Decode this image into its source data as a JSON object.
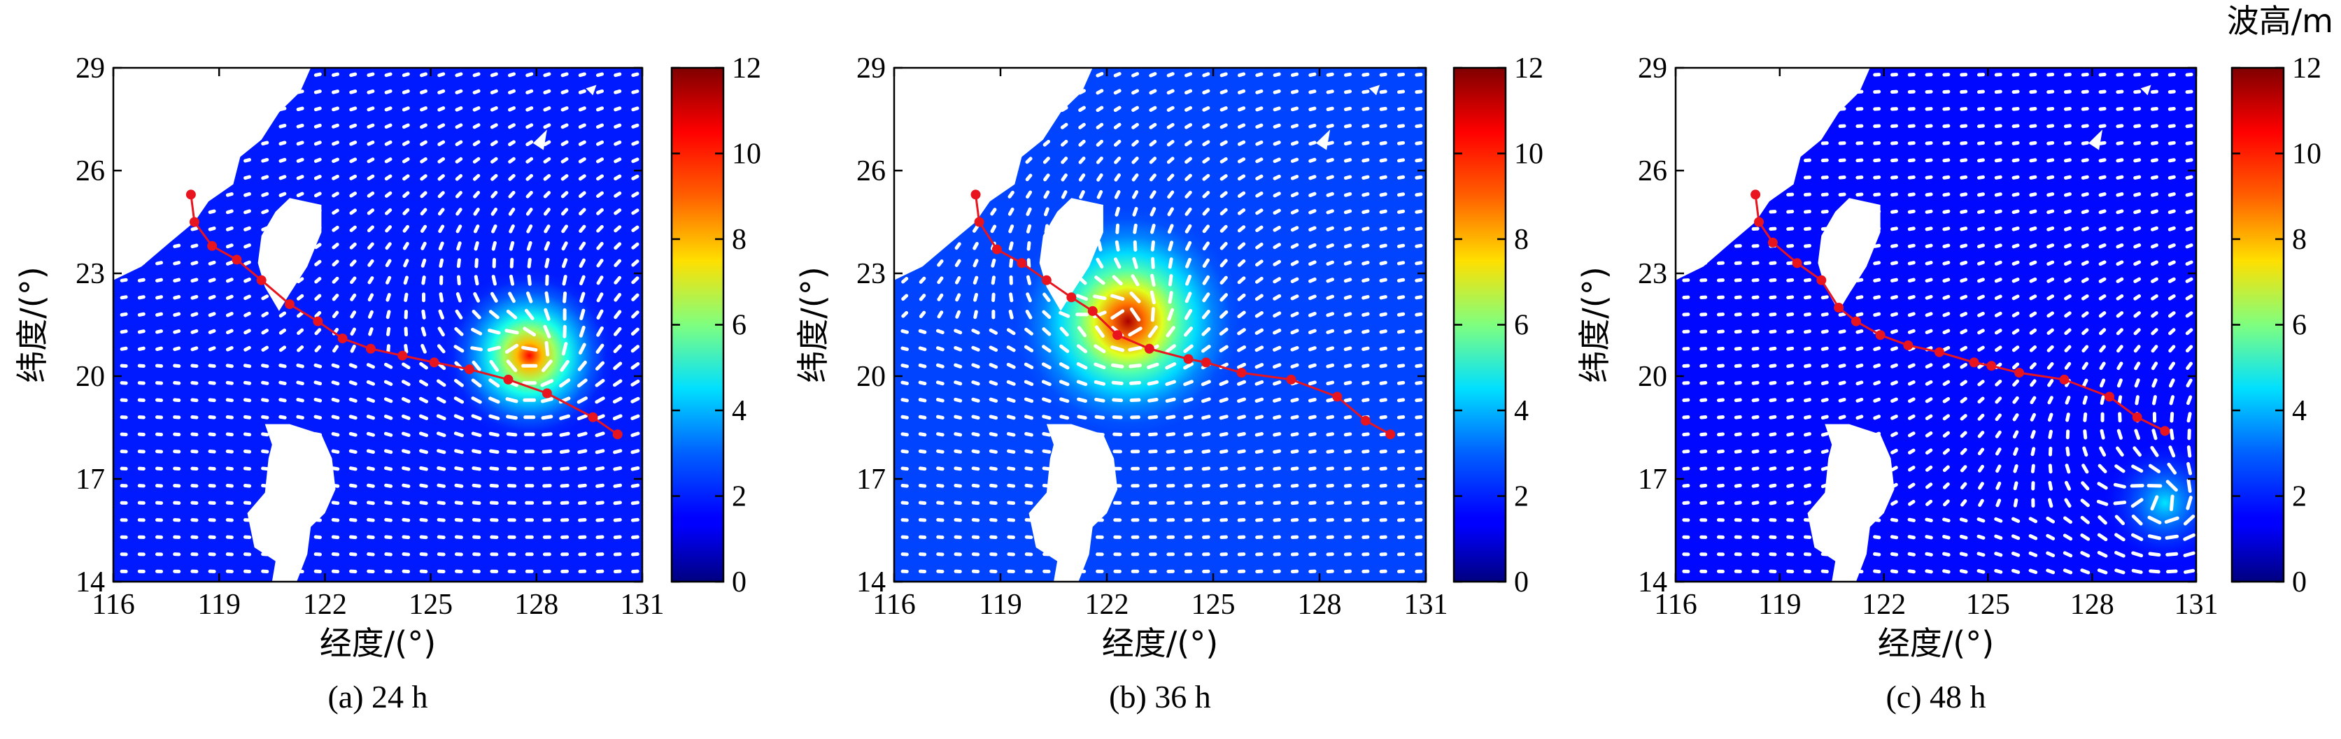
{
  "figure": {
    "colorbar_unit": "波高/m"
  },
  "chart_data": [
    {
      "type": "heatmap",
      "caption": "(a) 24 h",
      "xlabel": "经度/(°)",
      "ylabel": "纬度/(°)",
      "xlim": [
        116,
        131
      ],
      "ylim": [
        14,
        29
      ],
      "xticks": [
        116,
        119,
        122,
        125,
        128,
        131
      ],
      "yticks": [
        14,
        17,
        20,
        23,
        26,
        29
      ],
      "colorbar": {
        "range": [
          0,
          12
        ],
        "ticks": [
          0,
          2,
          4,
          6,
          8,
          10,
          12
        ]
      },
      "wave_field": {
        "background": 1.8,
        "peak": {
          "lon": 127.8,
          "lat": 20.6,
          "height": 10.5,
          "radius_deg": 1.5
        }
      },
      "track": {
        "lon": [
          130.3,
          129.6,
          128.3,
          127.2,
          126.1,
          125.1,
          124.2,
          123.3,
          122.5,
          121.8,
          121.0,
          120.2,
          119.5,
          118.8,
          118.3,
          118.2
        ],
        "lat": [
          18.3,
          18.8,
          19.5,
          19.9,
          20.2,
          20.4,
          20.6,
          20.8,
          21.1,
          21.6,
          22.1,
          22.8,
          23.4,
          23.8,
          24.5,
          25.3
        ]
      }
    },
    {
      "type": "heatmap",
      "caption": "(b) 36 h",
      "xlabel": "经度/(°)",
      "ylabel": "纬度/(°)",
      "xlim": [
        116,
        131
      ],
      "ylim": [
        14,
        29
      ],
      "xticks": [
        116,
        119,
        122,
        125,
        128,
        131
      ],
      "yticks": [
        14,
        17,
        20,
        23,
        26,
        29
      ],
      "colorbar": {
        "range": [
          0,
          12
        ],
        "ticks": [
          0,
          2,
          4,
          6,
          8,
          10,
          12
        ]
      },
      "wave_field": {
        "background": 2.3,
        "peak": {
          "lon": 122.6,
          "lat": 21.6,
          "height": 11.5,
          "radius_deg": 2.0
        }
      },
      "track": {
        "lon": [
          130.0,
          129.3,
          128.5,
          127.2,
          125.8,
          124.8,
          124.3,
          123.2,
          122.3,
          121.6,
          121.0,
          120.3,
          119.6,
          118.9,
          118.4,
          118.3
        ],
        "lat": [
          18.3,
          18.7,
          19.4,
          19.9,
          20.1,
          20.4,
          20.5,
          20.8,
          21.2,
          21.9,
          22.3,
          22.8,
          23.3,
          23.7,
          24.5,
          25.3
        ]
      }
    },
    {
      "type": "heatmap",
      "caption": "(c) 48 h",
      "xlabel": "经度/(°)",
      "ylabel": "纬度/(°)",
      "xlim": [
        116,
        131
      ],
      "ylim": [
        14,
        29
      ],
      "xticks": [
        116,
        119,
        122,
        125,
        128,
        131
      ],
      "yticks": [
        14,
        17,
        20,
        23,
        26,
        29
      ],
      "colorbar": {
        "range": [
          0,
          12
        ],
        "ticks": [
          0,
          2,
          4,
          6,
          8,
          10,
          12
        ]
      },
      "wave_field": {
        "background": 1.6,
        "peak": {
          "lon": 130.1,
          "lat": 16.3,
          "height": 4.2,
          "radius_deg": 1.1
        }
      },
      "track": {
        "lon": [
          130.1,
          129.3,
          128.5,
          127.2,
          125.9,
          125.1,
          124.6,
          123.6,
          122.7,
          121.9,
          121.2,
          120.7,
          120.2,
          119.5,
          118.8,
          118.4,
          118.3
        ],
        "lat": [
          18.4,
          18.8,
          19.4,
          19.9,
          20.1,
          20.3,
          20.4,
          20.7,
          20.9,
          21.2,
          21.6,
          22.0,
          22.8,
          23.3,
          23.9,
          24.5,
          25.3
        ]
      }
    }
  ]
}
